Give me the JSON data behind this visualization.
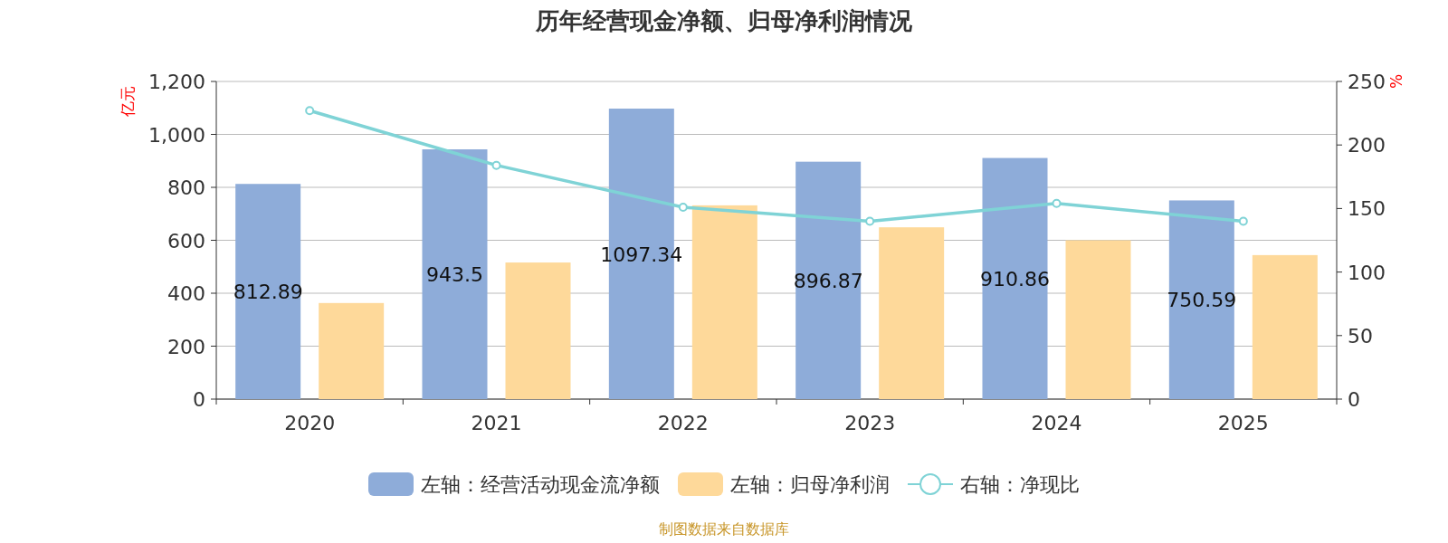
{
  "chart_data": {
    "type": "bar",
    "title": "历年经营现金净额、归母净利润情况",
    "ylabel": "亿元",
    "y2label": "%",
    "categories": [
      "2020",
      "2021",
      "2022",
      "2023",
      "2024",
      "2025"
    ],
    "series": [
      {
        "name": "左轴：经营活动现金流净额",
        "color": "#8eacd9",
        "values": [
          812.89,
          943.5,
          1097.34,
          896.87,
          910.86,
          750.59
        ],
        "value_labels": [
          "812.89",
          "943.5",
          "1097.34",
          "896.87",
          "910.86",
          "750.59"
        ]
      },
      {
        "name": "左轴：归母净利润",
        "color": "#fed99a",
        "values": [
          363,
          516,
          732,
          649,
          600,
          544
        ]
      },
      {
        "name": "右轴：净现比",
        "type": "line",
        "axis": "y2",
        "color": "#7fd3d6",
        "marker": "circle",
        "values": [
          227,
          184,
          151,
          140,
          154,
          140
        ]
      }
    ],
    "ylim": [
      0,
      1200
    ],
    "yticks": [
      0,
      200,
      400,
      600,
      800,
      {
        "value": 1000,
        "label": "1,000"
      },
      {
        "value": 1200,
        "label": "1,200"
      }
    ],
    "y2lim": [
      0,
      250
    ],
    "y2ticks": [
      0,
      50,
      100,
      150,
      200,
      250
    ],
    "grid": "y",
    "legend": "bottom",
    "annotations": [
      "制图数据来自数据库"
    ]
  }
}
